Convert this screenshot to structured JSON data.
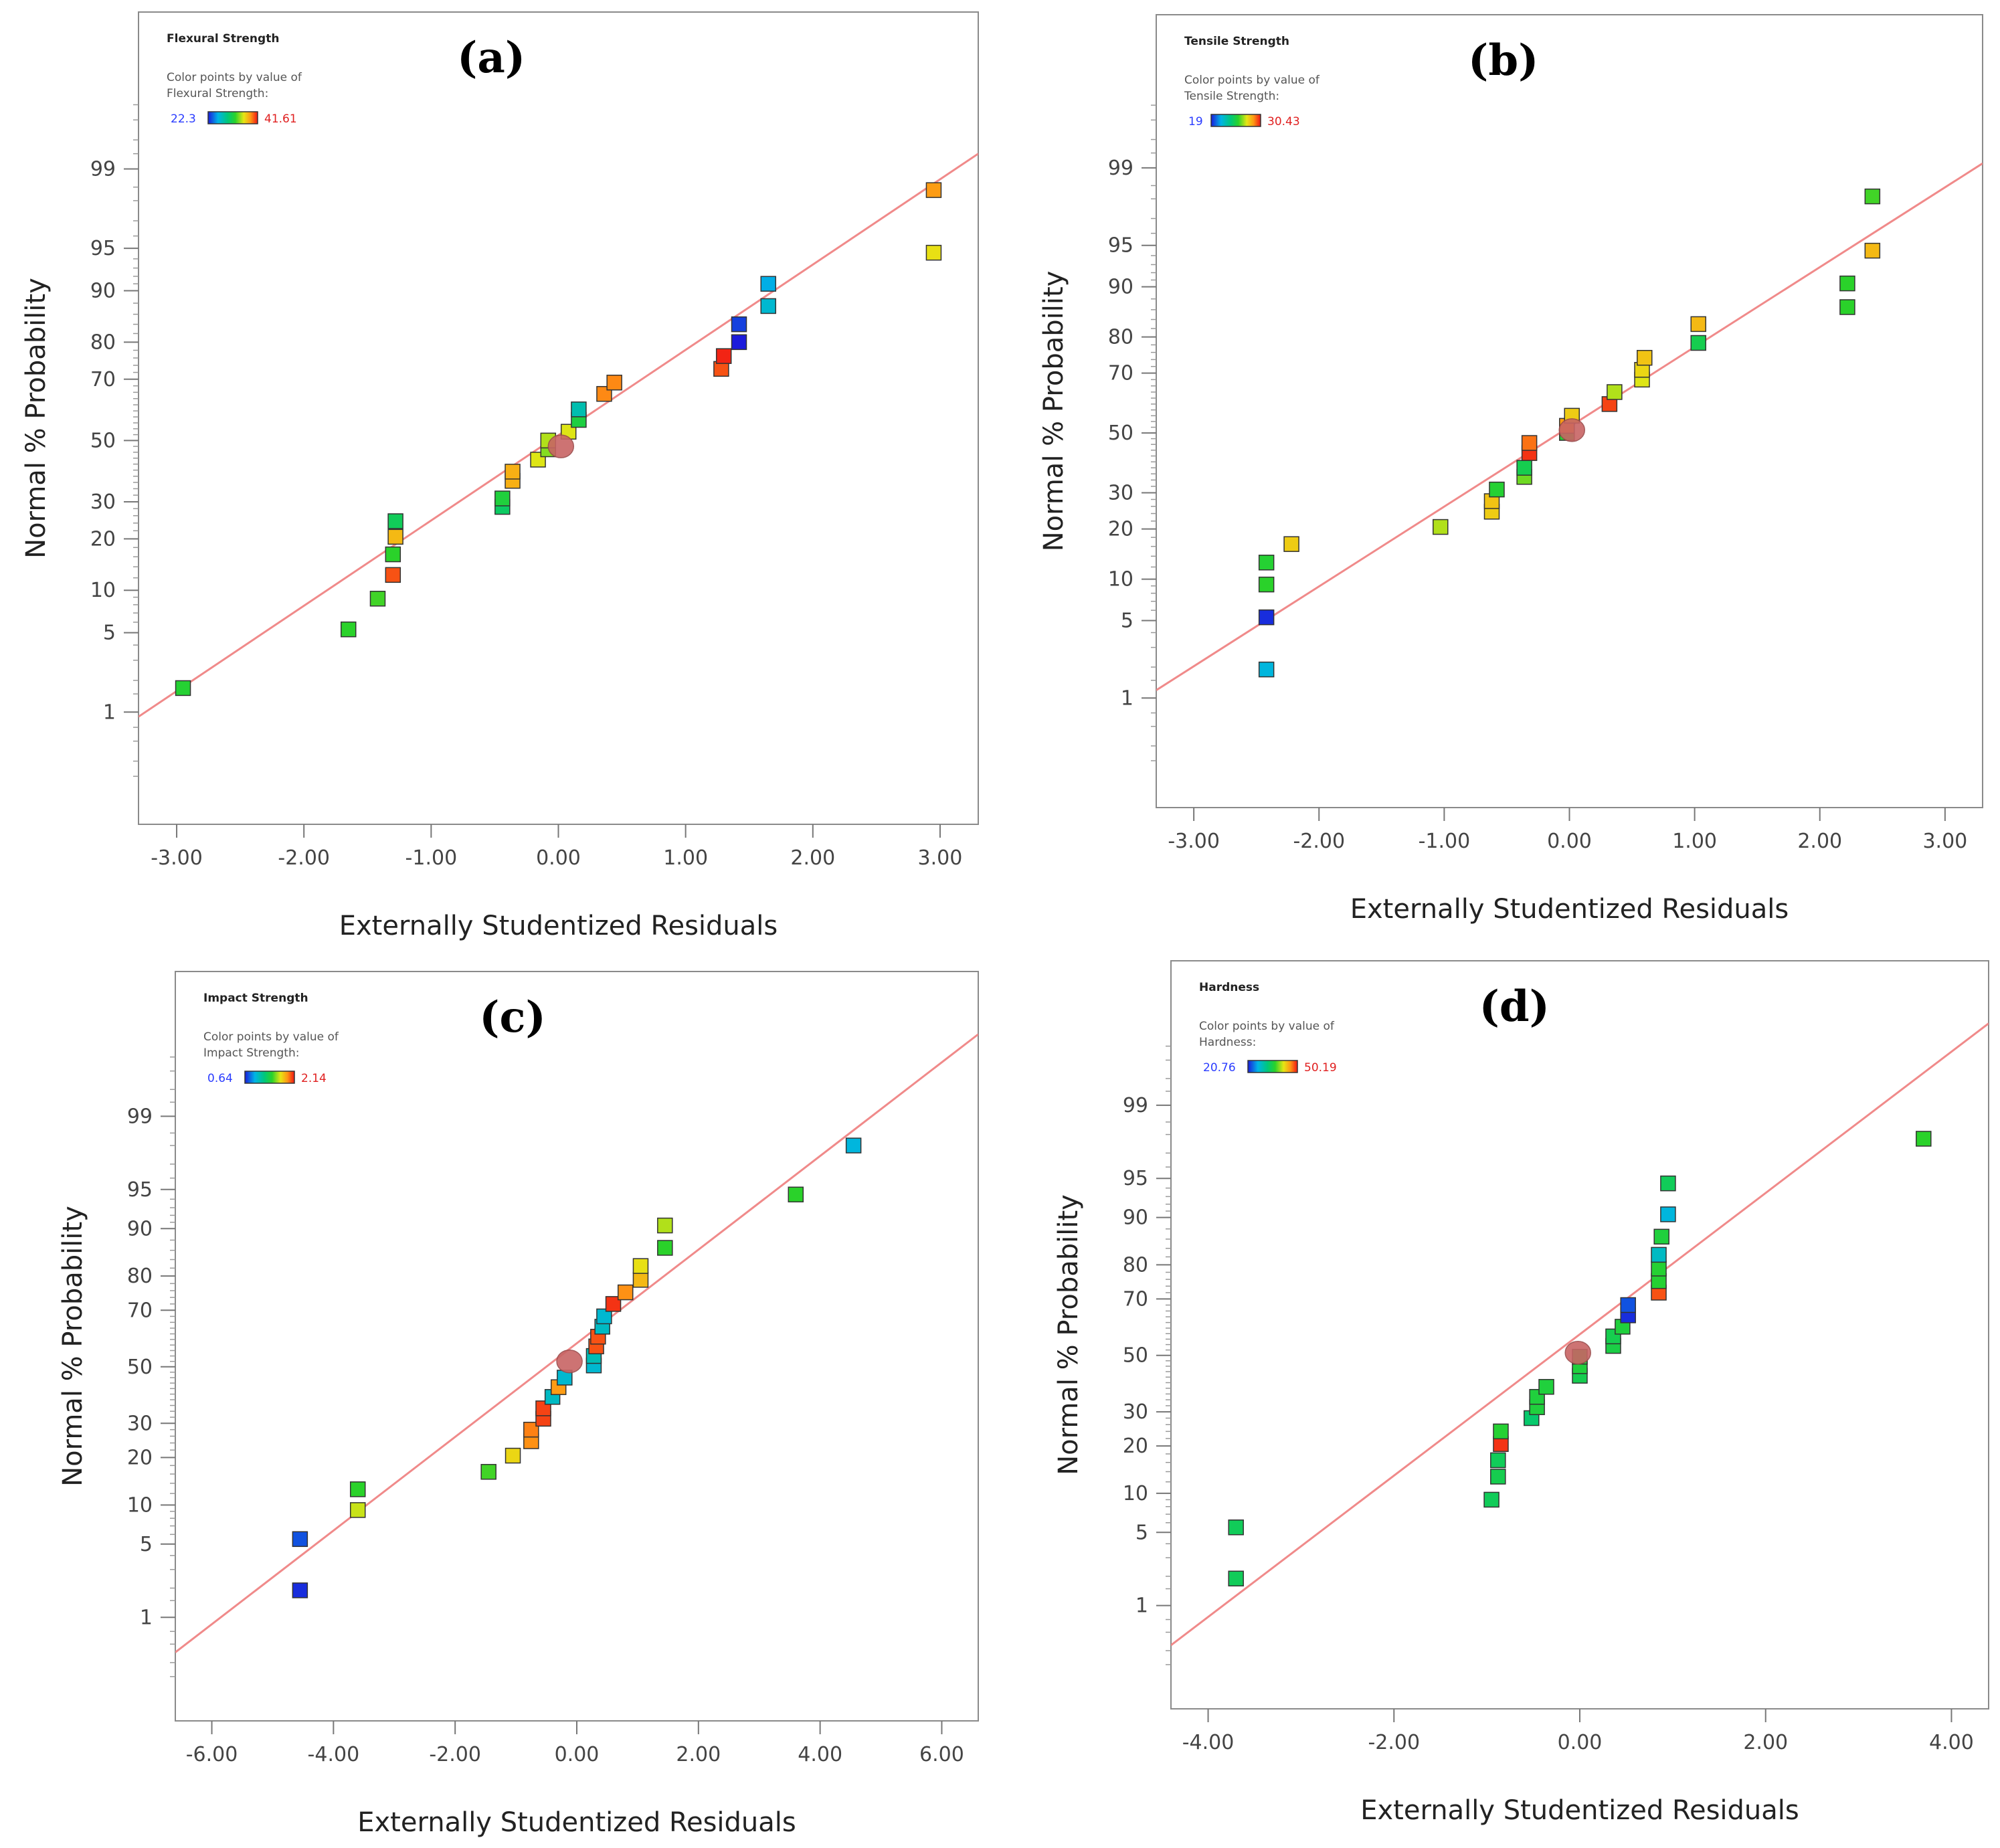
{
  "colors": {
    "fit_line": "#f08a8a",
    "center_marker": "#c86464",
    "frame": "#8a8a8a",
    "point_outline": "#333333",
    "gradient": [
      "#1b1bdc",
      "#00b4e6",
      "#00c878",
      "#2ad22a",
      "#e6e614",
      "#ff9614",
      "#f01414"
    ]
  },
  "chart_data": [
    {
      "type": "scatter",
      "letter": "(a)",
      "legend_title": "Flexural Strength",
      "legend_line1": "Color points by value of",
      "legend_line2": "Flexural Strength:",
      "range_min": "22.3",
      "range_max": "41.61",
      "xlabel": "Externally Studentized Residuals",
      "ylabel": "Normal % Probability",
      "xlim": [
        -3.3,
        3.3
      ],
      "xticks": [
        -3,
        -2,
        -1,
        0,
        1,
        2,
        3
      ],
      "xtick_labels": [
        "-3.00",
        "-2.00",
        "-1.00",
        "0.00",
        "1.00",
        "2.00",
        "3.00"
      ],
      "ytick_labels": [
        "99",
        "95",
        "90",
        "80",
        "70",
        "50",
        "30",
        "20",
        "10",
        "5",
        "1"
      ],
      "line": {
        "x": [
          -3.3,
          3.3
        ],
        "y": [
          0.9,
          99.3
        ]
      },
      "center": {
        "x": 0.02,
        "y": 48
      },
      "points": [
        {
          "x": -2.95,
          "y": 1.7,
          "c": 0.48
        },
        {
          "x": -1.65,
          "y": 5.3,
          "c": 0.5
        },
        {
          "x": -1.42,
          "y": 8.8,
          "c": 0.52
        },
        {
          "x": -1.3,
          "y": 12.5,
          "c": 0.92
        },
        {
          "x": -1.3,
          "y": 16.5,
          "c": 0.5
        },
        {
          "x": -1.28,
          "y": 20.5,
          "c": 0.76
        },
        {
          "x": -1.28,
          "y": 24.5,
          "c": 0.4
        },
        {
          "x": -0.44,
          "y": 28.5,
          "c": 0.38
        },
        {
          "x": -0.44,
          "y": 31,
          "c": 0.46
        },
        {
          "x": -0.36,
          "y": 36.5,
          "c": 0.78
        },
        {
          "x": -0.36,
          "y": 39.5,
          "c": 0.78
        },
        {
          "x": -0.16,
          "y": 43.5,
          "c": 0.66
        },
        {
          "x": -0.08,
          "y": 47,
          "c": 0.58
        },
        {
          "x": -0.08,
          "y": 50,
          "c": 0.62
        },
        {
          "x": 0.08,
          "y": 53,
          "c": 0.66
        },
        {
          "x": 0.16,
          "y": 57,
          "c": 0.45
        },
        {
          "x": 0.16,
          "y": 60.5,
          "c": 0.25
        },
        {
          "x": 0.36,
          "y": 65.5,
          "c": 0.85
        },
        {
          "x": 0.44,
          "y": 69,
          "c": 0.85
        },
        {
          "x": 1.28,
          "y": 73,
          "c": 0.92
        },
        {
          "x": 1.3,
          "y": 76.5,
          "c": 0.98
        },
        {
          "x": 1.42,
          "y": 80,
          "c": 0.0
        },
        {
          "x": 1.42,
          "y": 84,
          "c": 0.04
        },
        {
          "x": 1.65,
          "y": 87.5,
          "c": 0.2
        },
        {
          "x": 1.65,
          "y": 91,
          "c": 0.16
        },
        {
          "x": 2.95,
          "y": 94.6,
          "c": 0.68
        },
        {
          "x": 2.95,
          "y": 98.4,
          "c": 0.82
        }
      ]
    },
    {
      "type": "scatter",
      "letter": "(b)",
      "legend_title": "Tensile Strength",
      "legend_line1": "Color points by value of",
      "legend_line2": "Tensile Strength:",
      "range_min": "19",
      "range_max": "30.43",
      "xlabel": "Externally Studentized Residuals",
      "ylabel": "Normal % Probability",
      "xlim": [
        -3.3,
        3.3
      ],
      "xticks": [
        -3,
        -2,
        -1,
        0,
        1,
        2,
        3
      ],
      "xtick_labels": [
        "-3.00",
        "-2.00",
        "-1.00",
        "0.00",
        "1.00",
        "2.00",
        "3.00"
      ],
      "ytick_labels": [
        "99",
        "95",
        "90",
        "80",
        "70",
        "50",
        "30",
        "20",
        "10",
        "5",
        "1"
      ],
      "line": {
        "x": [
          -3.3,
          3.3
        ],
        "y": [
          1.2,
          99.1
        ]
      },
      "center": {
        "x": 0.02,
        "y": 51
      },
      "points": [
        {
          "x": -2.42,
          "y": 1.9,
          "c": 0.18
        },
        {
          "x": -2.42,
          "y": 5.3,
          "c": 0.02
        },
        {
          "x": -2.42,
          "y": 9.2,
          "c": 0.5
        },
        {
          "x": -2.42,
          "y": 12.8,
          "c": 0.48
        },
        {
          "x": -2.22,
          "y": 16.5,
          "c": 0.72
        },
        {
          "x": -1.03,
          "y": 20.5,
          "c": 0.62
        },
        {
          "x": -0.62,
          "y": 24.5,
          "c": 0.72
        },
        {
          "x": -0.62,
          "y": 27.5,
          "c": 0.74
        },
        {
          "x": -0.58,
          "y": 31,
          "c": 0.48
        },
        {
          "x": -0.36,
          "y": 35,
          "c": 0.56
        },
        {
          "x": -0.36,
          "y": 38,
          "c": 0.42
        },
        {
          "x": -0.32,
          "y": 43,
          "c": 0.96
        },
        {
          "x": -0.32,
          "y": 46.5,
          "c": 0.88
        },
        {
          "x": -0.02,
          "y": 50,
          "c": 0.48
        },
        {
          "x": -0.02,
          "y": 52.5,
          "c": 0.82
        },
        {
          "x": 0.02,
          "y": 56,
          "c": 0.72
        },
        {
          "x": 0.32,
          "y": 60,
          "c": 0.94
        },
        {
          "x": 0.36,
          "y": 64,
          "c": 0.62
        },
        {
          "x": 0.58,
          "y": 68,
          "c": 0.66
        },
        {
          "x": 0.58,
          "y": 71,
          "c": 0.7
        },
        {
          "x": 0.6,
          "y": 74.5,
          "c": 0.74
        },
        {
          "x": 1.03,
          "y": 78.5,
          "c": 0.42
        },
        {
          "x": 1.03,
          "y": 83,
          "c": 0.76
        },
        {
          "x": 2.22,
          "y": 86.5,
          "c": 0.5
        },
        {
          "x": 2.22,
          "y": 90.5,
          "c": 0.5
        },
        {
          "x": 2.42,
          "y": 94.5,
          "c": 0.76
        },
        {
          "x": 2.42,
          "y": 98.1,
          "c": 0.52
        }
      ]
    },
    {
      "type": "scatter",
      "letter": "(c)",
      "legend_title": "Impact Strength",
      "legend_line1": "Color points by value of",
      "legend_line2": "Impact Strength:",
      "range_min": "0.64",
      "range_max": "2.14",
      "xlabel": "Externally Studentized Residuals",
      "ylabel": "Normal % Probability",
      "xlim": [
        -6.6,
        6.6
      ],
      "xticks": [
        -6,
        -4,
        -2,
        0,
        2,
        4,
        6
      ],
      "xtick_labels": [
        "-6.00",
        "-4.00",
        "-2.00",
        "0.00",
        "2.00",
        "4.00",
        "6.00"
      ],
      "ytick_labels": [
        "99",
        "95",
        "90",
        "80",
        "70",
        "50",
        "30",
        "20",
        "10",
        "5",
        "1"
      ],
      "line": {
        "x": [
          -6.6,
          6.6
        ],
        "y": [
          0.4,
          99.9
        ]
      },
      "center": {
        "x": -0.12,
        "y": 52
      },
      "points": [
        {
          "x": -4.55,
          "y": 1.9,
          "c": 0.02
        },
        {
          "x": -4.55,
          "y": 5.5,
          "c": 0.06
        },
        {
          "x": -3.6,
          "y": 9.2,
          "c": 0.64
        },
        {
          "x": -3.6,
          "y": 12.8,
          "c": 0.5
        },
        {
          "x": -1.45,
          "y": 16.5,
          "c": 0.52
        },
        {
          "x": -1.05,
          "y": 20.5,
          "c": 0.7
        },
        {
          "x": -0.75,
          "y": 24.5,
          "c": 0.84
        },
        {
          "x": -0.75,
          "y": 28,
          "c": 0.86
        },
        {
          "x": -0.55,
          "y": 31.5,
          "c": 0.94
        },
        {
          "x": -0.55,
          "y": 35,
          "c": 0.94
        },
        {
          "x": -0.4,
          "y": 39,
          "c": 0.22
        },
        {
          "x": -0.3,
          "y": 42.5,
          "c": 0.82
        },
        {
          "x": -0.2,
          "y": 46,
          "c": 0.2
        },
        {
          "x": 0.28,
          "y": 50.5,
          "c": 0.2
        },
        {
          "x": 0.28,
          "y": 54,
          "c": 0.24
        },
        {
          "x": 0.32,
          "y": 57.5,
          "c": 0.92
        },
        {
          "x": 0.35,
          "y": 61,
          "c": 0.92
        },
        {
          "x": 0.42,
          "y": 64.5,
          "c": 0.22
        },
        {
          "x": 0.45,
          "y": 68,
          "c": 0.2
        },
        {
          "x": 0.6,
          "y": 72,
          "c": 0.96
        },
        {
          "x": 0.8,
          "y": 75.5,
          "c": 0.84
        },
        {
          "x": 1.05,
          "y": 79,
          "c": 0.76
        },
        {
          "x": 1.05,
          "y": 82.5,
          "c": 0.68
        },
        {
          "x": 1.45,
          "y": 86.5,
          "c": 0.5
        },
        {
          "x": 1.45,
          "y": 90.5,
          "c": 0.62
        },
        {
          "x": 3.6,
          "y": 94.5,
          "c": 0.5
        },
        {
          "x": 4.55,
          "y": 98,
          "c": 0.18
        }
      ]
    },
    {
      "type": "scatter",
      "letter": "(d)",
      "legend_title": "Hardness",
      "legend_line1": "Color points by value of",
      "legend_line2": "Hardness:",
      "range_min": "20.76",
      "range_max": "50.19",
      "xlabel": "Externally Studentized Residuals",
      "ylabel": "Normal % Probability",
      "xlim": [
        -4.4,
        4.4
      ],
      "xticks": [
        -4,
        -2,
        0,
        2,
        4
      ],
      "xtick_labels": [
        "-4.00",
        "-2.00",
        "0.00",
        "2.00",
        "4.00"
      ],
      "ytick_labels": [
        "99",
        "95",
        "90",
        "80",
        "70",
        "50",
        "30",
        "20",
        "10",
        "5",
        "1"
      ],
      "line": {
        "x": [
          -4.4,
          4.4
        ],
        "y": [
          0.35,
          99.9
        ]
      },
      "center": {
        "x": -0.02,
        "y": 51
      },
      "points": [
        {
          "x": -3.7,
          "y": 1.9,
          "c": 0.4
        },
        {
          "x": -3.7,
          "y": 5.5,
          "c": 0.4
        },
        {
          "x": -0.95,
          "y": 9,
          "c": 0.4
        },
        {
          "x": -0.88,
          "y": 13,
          "c": 0.42
        },
        {
          "x": -0.88,
          "y": 16.5,
          "c": 0.4
        },
        {
          "x": -0.85,
          "y": 20.5,
          "c": 0.96
        },
        {
          "x": -0.85,
          "y": 24,
          "c": 0.48
        },
        {
          "x": -0.52,
          "y": 28,
          "c": 0.36
        },
        {
          "x": -0.46,
          "y": 31.5,
          "c": 0.46
        },
        {
          "x": -0.46,
          "y": 35,
          "c": 0.46
        },
        {
          "x": -0.36,
          "y": 38.5,
          "c": 0.46
        },
        {
          "x": 0.0,
          "y": 42.5,
          "c": 0.42
        },
        {
          "x": 0.0,
          "y": 46,
          "c": 0.46
        },
        {
          "x": 0.0,
          "y": 49.5,
          "c": 0.46
        },
        {
          "x": 0.36,
          "y": 53.5,
          "c": 0.44
        },
        {
          "x": 0.36,
          "y": 57,
          "c": 0.42
        },
        {
          "x": 0.46,
          "y": 60.5,
          "c": 0.46
        },
        {
          "x": 0.52,
          "y": 64.5,
          "c": 0.02
        },
        {
          "x": 0.52,
          "y": 68,
          "c": 0.06
        },
        {
          "x": 0.85,
          "y": 72,
          "c": 0.92
        },
        {
          "x": 0.85,
          "y": 75.5,
          "c": 0.48
        },
        {
          "x": 0.85,
          "y": 79,
          "c": 0.48
        },
        {
          "x": 0.85,
          "y": 82.5,
          "c": 0.22
        },
        {
          "x": 0.88,
          "y": 86.5,
          "c": 0.46
        },
        {
          "x": 0.95,
          "y": 90.5,
          "c": 0.18
        },
        {
          "x": 0.95,
          "y": 94.5,
          "c": 0.4
        },
        {
          "x": 3.7,
          "y": 97.8,
          "c": 0.5
        }
      ]
    }
  ]
}
